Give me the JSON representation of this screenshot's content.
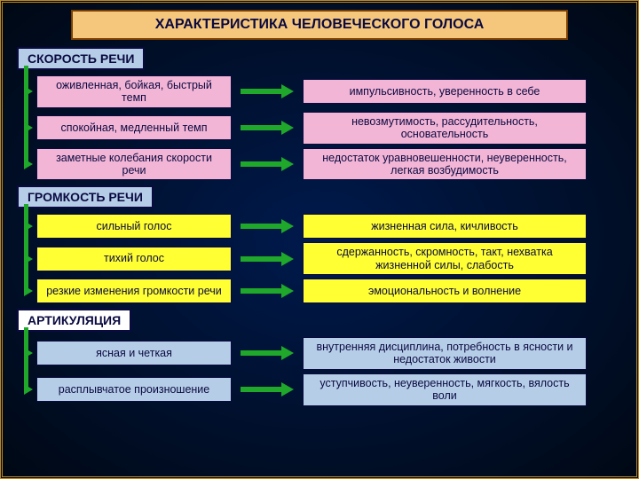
{
  "background": {
    "gradient_from": "#001a4d",
    "gradient_to": "#000814",
    "outer_border": "#c08820"
  },
  "title": {
    "text": "ХАРАКТЕРИСТИКА ЧЕЛОВЕЧЕСКОГО ГОЛОСА",
    "bg": "#f5c77d",
    "border": "#7a3e00",
    "color": "#0a0a40",
    "fontsize": 16
  },
  "arrow_colors": {
    "fill": "#1fa82a",
    "head": "#1fa82a"
  },
  "vbar_color": "#1fa82a",
  "sections": [
    {
      "label": "СКОРОСТЬ РЕЧИ",
      "label_style": {
        "bg": "#b6cde8",
        "border": "#0a0a40",
        "color": "#0a0a40"
      },
      "box_style": {
        "bg": "#f3b5d6",
        "border": "#0a0a40",
        "color": "#0a0a40"
      },
      "rows": [
        {
          "left": "оживленная, бойкая, быстрый темп",
          "right": "импульсивность, уверенность в себе"
        },
        {
          "left": "спокойная, медленный темп",
          "right": "невозмутимость, рассудительность, основательность"
        },
        {
          "left": "заметные колебания скорости речи",
          "right": "недостаток уравновешенности, неуверенность, легкая возбудимость"
        }
      ]
    },
    {
      "label": "ГРОМКОСТЬ РЕЧИ",
      "label_style": {
        "bg": "#b6cde8",
        "border": "#0a0a40",
        "color": "#0a0a40"
      },
      "box_style": {
        "bg": "#ffff33",
        "border": "#0a0a40",
        "color": "#0a0a40"
      },
      "rows": [
        {
          "left": "сильный голос",
          "right": "жизненная сила, кичливость"
        },
        {
          "left": "тихий голос",
          "right": "сдержанность, скромность, такт, нехватка жизненной силы, слабость"
        },
        {
          "left": "резкие изменения громкости речи",
          "right": "эмоциональность и волнение"
        }
      ]
    },
    {
      "label": "АРТИКУЛЯЦИЯ",
      "label_style": {
        "bg": "#ffffff",
        "border": "#0a0a40",
        "color": "#0a0a40"
      },
      "box_style": {
        "bg": "#b6cde8",
        "border": "#0a0a40",
        "color": "#0a0a40"
      },
      "rows": [
        {
          "left": "ясная и четкая",
          "right": "внутренняя дисциплина, потребность в ясности и недостаток живости"
        },
        {
          "left": "расплывчатое произношение",
          "right": "уступчивость, неуверенность, мягкость, вялость воли"
        }
      ]
    }
  ]
}
